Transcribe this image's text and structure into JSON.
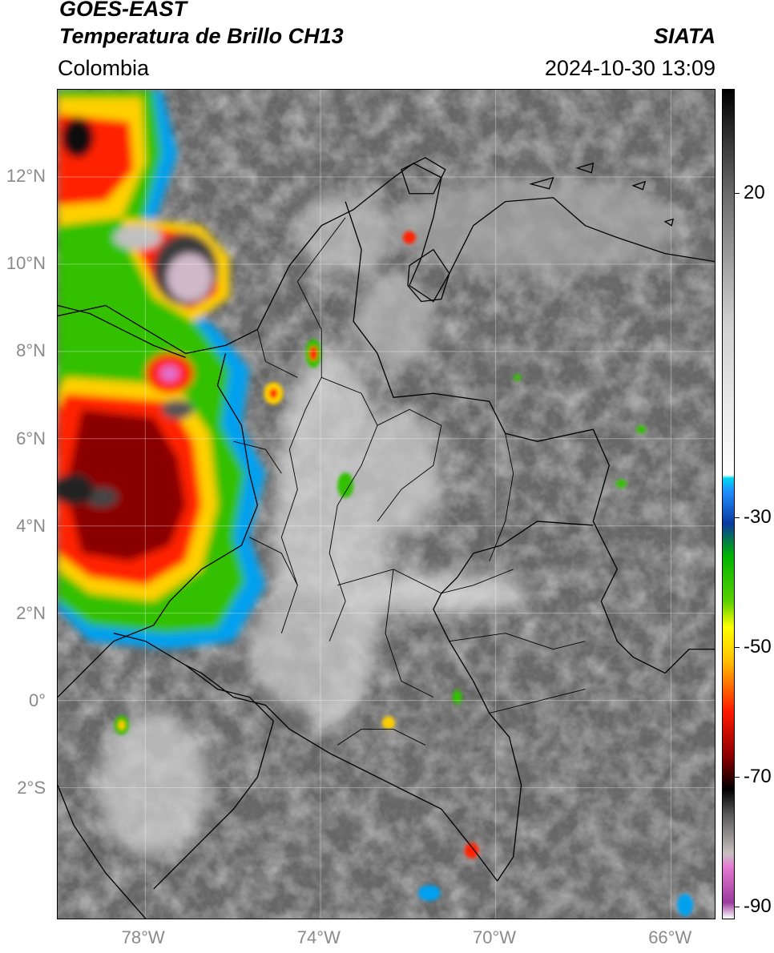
{
  "header": {
    "satellite": "GOES-EAST",
    "product": "Temperatura de Brillo CH13",
    "region": "Colombia",
    "agency": "SIATA",
    "timestamp": "2024-10-30 13:09"
  },
  "map": {
    "lat_range": [
      -5,
      14
    ],
    "lon_range": [
      -80,
      -65
    ],
    "lat_ticks": [
      {
        "value": 12,
        "label": "12°N"
      },
      {
        "value": 10,
        "label": "10°N"
      },
      {
        "value": 8,
        "label": "8°N"
      },
      {
        "value": 6,
        "label": "6°N"
      },
      {
        "value": 4,
        "label": "4°N"
      },
      {
        "value": 2,
        "label": "2°N"
      },
      {
        "value": 0,
        "label": "0°"
      },
      {
        "value": -2,
        "label": "2°S"
      }
    ],
    "lon_ticks": [
      {
        "value": -78,
        "label": "78°W"
      },
      {
        "value": -74,
        "label": "74°W"
      },
      {
        "value": -70,
        "label": "70°W"
      },
      {
        "value": -66,
        "label": "66°W"
      }
    ]
  },
  "colorbar": {
    "range": [
      -92,
      36
    ],
    "ticks": [
      {
        "value": 20,
        "label": "20"
      },
      {
        "value": -30,
        "label": "-30"
      },
      {
        "value": -50,
        "label": "-50"
      },
      {
        "value": -70,
        "label": "-70"
      },
      {
        "value": -90,
        "label": "-90"
      }
    ],
    "stops": [
      {
        "value": -92,
        "color": "#ffffff"
      },
      {
        "value": -89.5,
        "color": "#9a3a9a"
      },
      {
        "value": -84,
        "color": "#e77ad2"
      },
      {
        "value": -82,
        "color": "#c8c0c0"
      },
      {
        "value": -76,
        "color": "#5a5a5a"
      },
      {
        "value": -72,
        "color": "#000000"
      },
      {
        "value": -67,
        "color": "#8a0000"
      },
      {
        "value": -60,
        "color": "#ff1a00"
      },
      {
        "value": -52,
        "color": "#ffc400"
      },
      {
        "value": -47,
        "color": "#ffff00"
      },
      {
        "value": -43,
        "color": "#5ad000"
      },
      {
        "value": -36,
        "color": "#00b400"
      },
      {
        "value": -31,
        "color": "#0a3aa0"
      },
      {
        "value": -26,
        "color": "#1e90ff"
      },
      {
        "value": -24,
        "color": "#00d8f0"
      },
      {
        "value": -23.5,
        "color": "#ffffff"
      },
      {
        "value": 0,
        "color": "#d0d0d0"
      },
      {
        "value": 20,
        "color": "#6a6a6a"
      },
      {
        "value": 36,
        "color": "#000000"
      }
    ]
  }
}
